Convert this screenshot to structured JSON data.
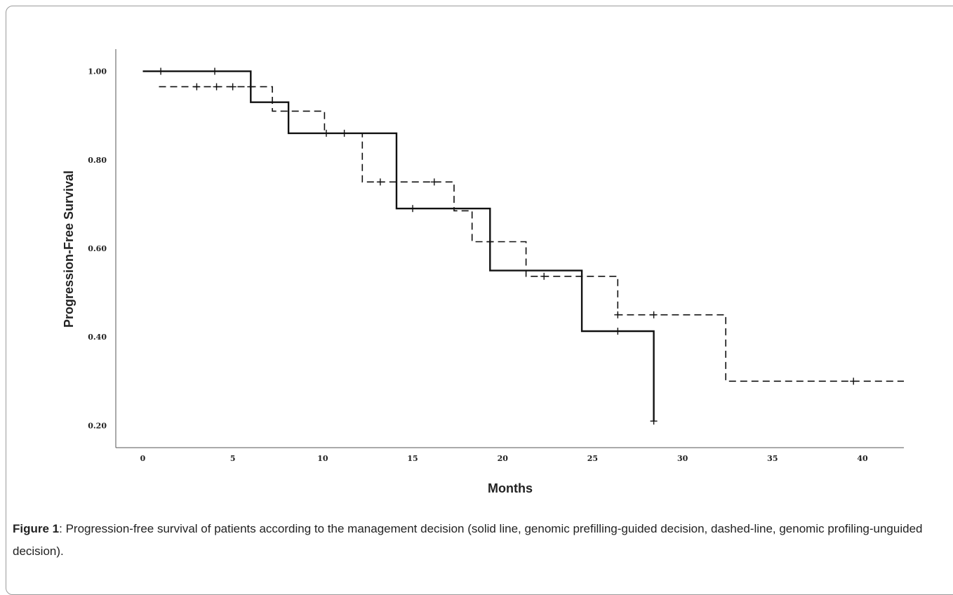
{
  "chart_data": {
    "type": "line",
    "subtype": "kaplan-meier step",
    "xlabel": "Months",
    "ylabel": "Progression-Free Survival",
    "xlim": [
      -1.5,
      42.3
    ],
    "ylim": [
      0.15,
      1.05
    ],
    "xticks": [
      0,
      5,
      10,
      15,
      20,
      25,
      30,
      35,
      40
    ],
    "xtick_labels": [
      "0",
      "5",
      "10",
      "15",
      "20",
      "25",
      "30",
      "35",
      "40"
    ],
    "yticks": [
      0.2,
      0.4,
      0.6,
      0.8,
      1.0
    ],
    "ytick_labels": [
      "0.20",
      "0.40",
      "0.60",
      "0.80",
      "1.00"
    ],
    "grid": false,
    "legend": "none",
    "series": [
      {
        "style": "solid",
        "color": "#111111",
        "steps": [
          [
            0,
            1.0
          ],
          [
            6.0,
            1.0
          ],
          [
            6.0,
            0.93
          ],
          [
            8.1,
            0.93
          ],
          [
            8.1,
            0.86
          ],
          [
            14.1,
            0.86
          ],
          [
            14.1,
            0.69
          ],
          [
            19.3,
            0.69
          ],
          [
            19.3,
            0.55
          ],
          [
            24.4,
            0.55
          ],
          [
            24.4,
            0.413
          ],
          [
            28.4,
            0.413
          ],
          [
            28.4,
            0.21
          ]
        ],
        "censored": [
          [
            1.0,
            1.0
          ],
          [
            4.0,
            1.0
          ],
          [
            10.2,
            0.86
          ],
          [
            11.2,
            0.86
          ],
          [
            15.0,
            0.69
          ],
          [
            19.3,
            0.615
          ],
          [
            26.4,
            0.413
          ],
          [
            28.4,
            0.21
          ]
        ]
      },
      {
        "style": "dashed",
        "color": "#111111",
        "steps": [
          [
            0.9,
            0.965
          ],
          [
            7.2,
            0.965
          ],
          [
            7.2,
            0.91
          ],
          [
            10.1,
            0.91
          ],
          [
            10.1,
            0.86
          ],
          [
            12.2,
            0.86
          ],
          [
            12.2,
            0.75
          ],
          [
            17.3,
            0.75
          ],
          [
            17.3,
            0.685
          ],
          [
            18.3,
            0.685
          ],
          [
            18.3,
            0.615
          ],
          [
            21.3,
            0.615
          ],
          [
            21.3,
            0.537
          ],
          [
            26.4,
            0.537
          ],
          [
            26.4,
            0.45
          ],
          [
            32.4,
            0.45
          ],
          [
            32.4,
            0.3
          ],
          [
            42.3,
            0.3
          ]
        ],
        "censored": [
          [
            3.0,
            0.965
          ],
          [
            4.1,
            0.965
          ],
          [
            5.0,
            0.965
          ],
          [
            6.0,
            0.965
          ],
          [
            13.2,
            0.75
          ],
          [
            16.2,
            0.75
          ],
          [
            22.3,
            0.537
          ],
          [
            26.4,
            0.45
          ],
          [
            28.4,
            0.45
          ],
          [
            39.5,
            0.3
          ]
        ]
      }
    ]
  },
  "caption": {
    "label": "Figure 1",
    "text": ": Progression-free survival of patients according to the management decision (solid line, genomic prefilling-guided decision, dashed-line, genomic profiling-unguided decision)."
  }
}
